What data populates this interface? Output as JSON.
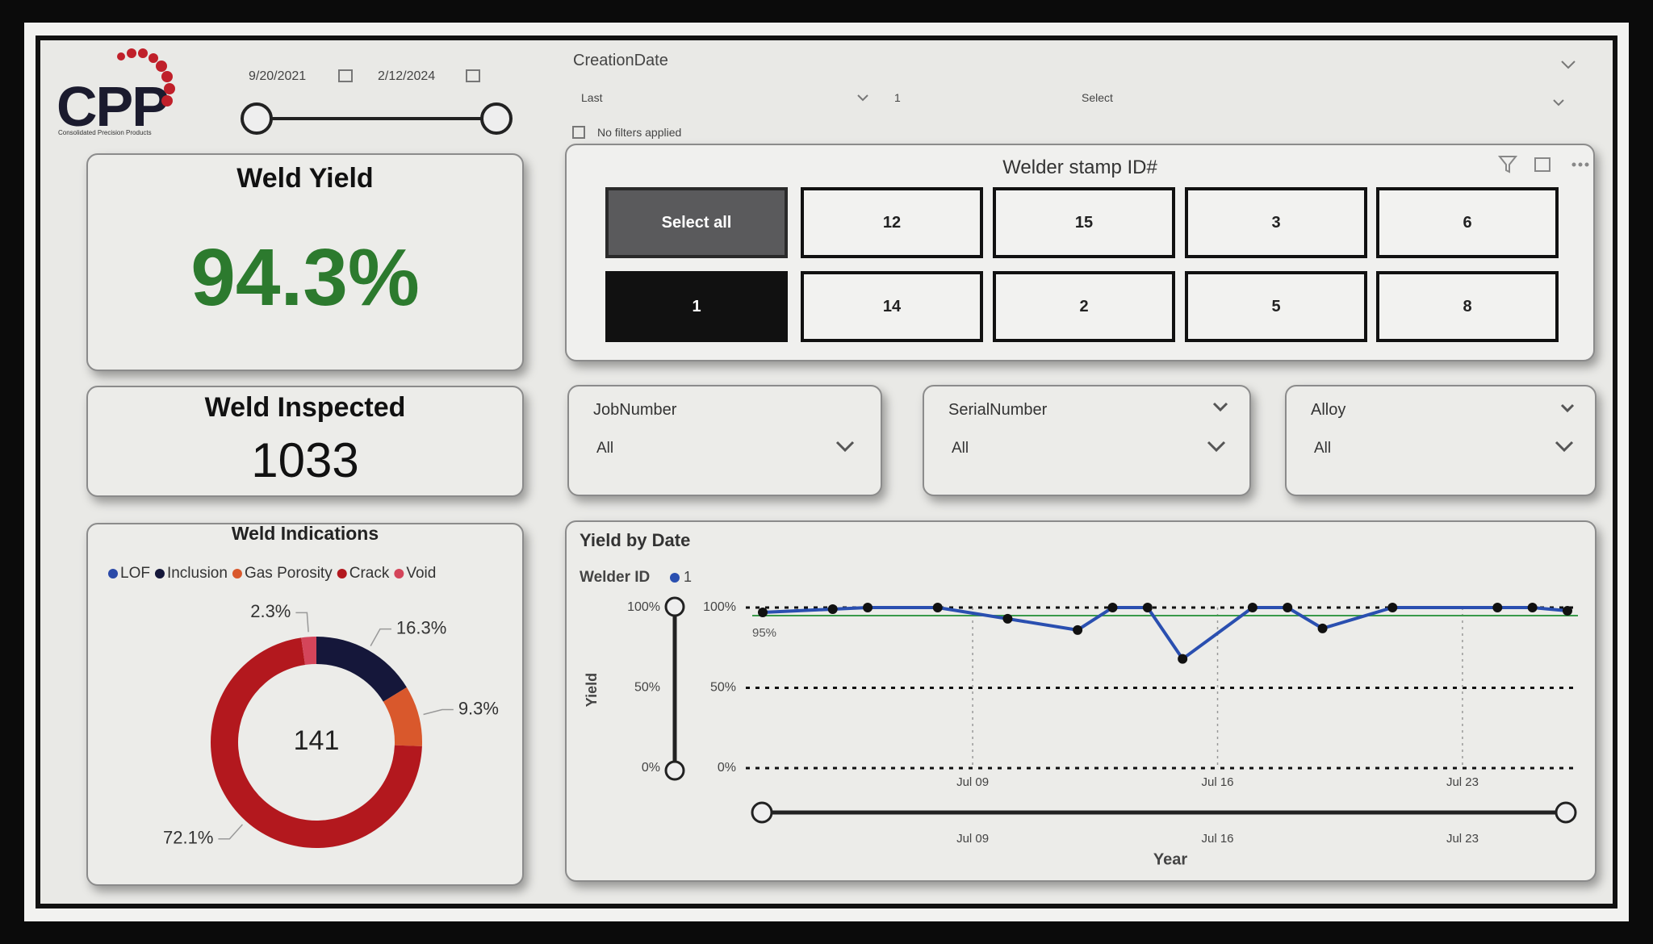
{
  "header": {
    "logo": "CPP",
    "logo_subtitle": "Consolidated Precision Products",
    "date_start": "9/20/2021",
    "date_end": "2/12/2024"
  },
  "creation_filter": {
    "title": "CreationDate",
    "mode": "Last",
    "count": "1",
    "unit": "Select",
    "note": "No filters applied"
  },
  "cards": {
    "weld_yield": {
      "title": "Weld Yield",
      "value": "94.3%"
    },
    "weld_inspected": {
      "title": "Weld Inspected",
      "value": "1033"
    }
  },
  "slicer": {
    "title": "Welder stamp ID#",
    "items": [
      "Select all",
      "12",
      "15",
      "3",
      "6",
      "1",
      "14",
      "2",
      "5",
      "8"
    ],
    "selected": [
      false,
      false,
      false,
      false,
      false,
      true,
      false,
      false,
      false,
      false
    ]
  },
  "dropdowns": [
    {
      "label": "JobNumber",
      "value": "All"
    },
    {
      "label": "SerialNumber",
      "value": "All"
    },
    {
      "label": "Alloy",
      "value": "All"
    }
  ],
  "chart_data": [
    {
      "type": "donut",
      "title": "Weld Indications",
      "center_label": "141",
      "categories": [
        "LOF",
        "Inclusion",
        "Gas Porosity",
        "Crack",
        "Void"
      ],
      "colors": [
        "#2b4aa8",
        "#15173a",
        "#d9582c",
        "#b3181e",
        "#d4455a"
      ],
      "values": [
        0,
        16.3,
        9.3,
        72.1,
        2.3
      ],
      "value_labels": [
        null,
        "16.3%",
        "9.3%",
        "72.1%",
        "2.3%"
      ]
    },
    {
      "type": "line",
      "title": "Yield by Date",
      "legend_title": "Welder ID",
      "y_label": "Yield",
      "x_label": "Year",
      "x": [
        3,
        5,
        6,
        8,
        10,
        12,
        13,
        14,
        15,
        17,
        18,
        19,
        21,
        24,
        25,
        26
      ],
      "series": [
        {
          "name": "1",
          "color": "#2a4fb0",
          "values": [
            97,
            99,
            100,
            100,
            93,
            86,
            100,
            100,
            68,
            100,
            100,
            87,
            100,
            100,
            100,
            98
          ]
        }
      ],
      "xlim": [
        2.7,
        26.3
      ],
      "xticks": [
        {
          "value": 9,
          "label": "Jul 09"
        },
        {
          "value": 16,
          "label": "Jul 16"
        },
        {
          "value": 23,
          "label": "Jul 23"
        }
      ],
      "ylim": [
        0,
        100
      ],
      "yticks": [
        {
          "value": 0,
          "label": "0%"
        },
        {
          "value": 50,
          "label": "50%"
        },
        {
          "value": 100,
          "label": "100%"
        }
      ],
      "reference_line": {
        "value": 95,
        "label": "95%",
        "color": "#3a9a4a"
      },
      "grid": true
    }
  ]
}
